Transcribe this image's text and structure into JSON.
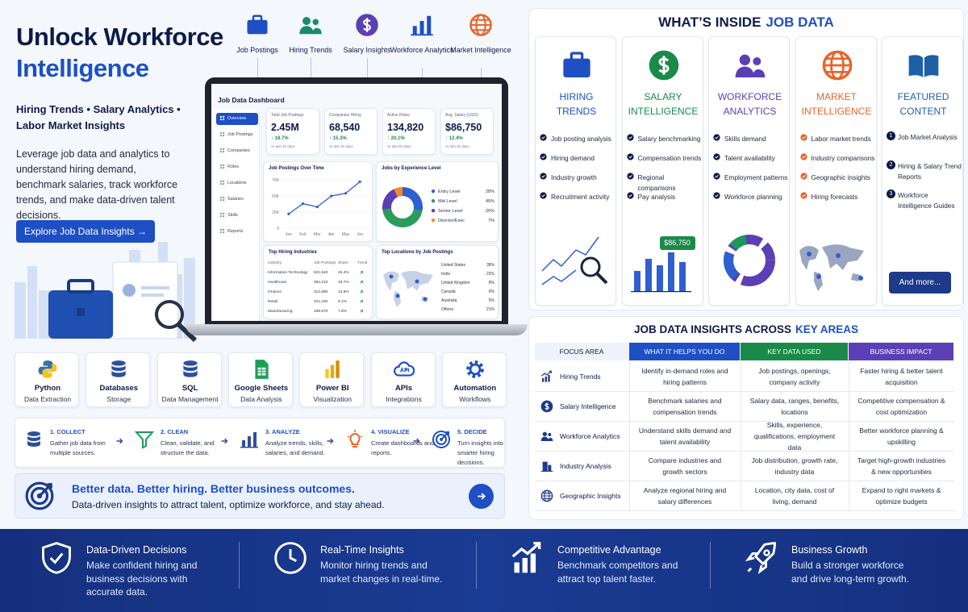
{
  "header": {
    "title_line1": "Unlock Workforce",
    "title_line2": "Intelligence",
    "tagline_line1": "Hiring Trends • Salary Analytics •",
    "tagline_line2": "Labor Market Insights",
    "description": "Leverage job data and analytics to understand hiring demand, benchmark salaries, track workforce trends, and make data-driven talent decisions.",
    "button": "Explore Job Data Insights →"
  },
  "top_icons": [
    "Job Postings",
    "Hiring Trends",
    "Salary Insights",
    "Workforce Analytics",
    "Market Intelligence"
  ],
  "dashboard": {
    "title": "Job Data Dashboard",
    "nav": [
      "Overview",
      "Job Postings",
      "Companies",
      "Roles",
      "Locations",
      "Salaries",
      "Skills",
      "Reports"
    ],
    "kpis": [
      {
        "label": "Total Job Postings",
        "value": "2.45M",
        "change": "↑ 18.7%",
        "period": "vs last 30 days"
      },
      {
        "label": "Companies Hiring",
        "value": "68,540",
        "change": "↑ 15.3%",
        "period": "vs last 30 days"
      },
      {
        "label": "Active Roles",
        "value": "134,820",
        "change": "↑ 20.1%",
        "period": "vs last 30 days"
      },
      {
        "label": "Avg. Salary (USD)",
        "value": "$86,750",
        "change": "↑ 12.4%",
        "period": "vs last 30 days"
      }
    ],
    "postings_chart": {
      "type": "line",
      "title": "Job Postings Over Time",
      "x": [
        "Jan",
        "Feb",
        "Mar",
        "Apr",
        "May",
        "Jun"
      ],
      "values": [
        22000,
        38000,
        33000,
        50000,
        54000,
        72000
      ],
      "color": "#2f5fd0",
      "ylim": [
        0,
        80000
      ],
      "yticks": [
        0,
        {
          "value": 25000,
          "label": "25K"
        },
        {
          "value": 50000,
          "label": "50K"
        },
        {
          "value": 75000,
          "label": "75K"
        }
      ]
    },
    "experience_chart": {
      "type": "pie",
      "title": "Jobs by Experience Level",
      "categories": [
        "Entry Level",
        "Mid Level",
        "Senior Level",
        "Director/Exec"
      ],
      "values": [
        28,
        45,
        20,
        7
      ],
      "value_labels": [
        "28%",
        "45%",
        "20%",
        "7%"
      ],
      "colors": [
        "#2f5fd0",
        "#2a9d5a",
        "#5b3fb5",
        "#f08a24"
      ]
    },
    "industries": {
      "title": "Top Hiring Industries",
      "columns": [
        "Industry",
        "Job Postings",
        "Share",
        "Trend"
      ],
      "rows": [
        [
          "Information Technology",
          "621,540",
          "25.4%"
        ],
        [
          "Healthcare",
          "384,210",
          "15.7%"
        ],
        [
          "Finance",
          "312,880",
          "12.8%"
        ],
        [
          "Retail",
          "221,430",
          "9.1%"
        ],
        [
          "Manufacturing",
          "189,670",
          "7.8%"
        ]
      ]
    },
    "locations": {
      "title": "Top Locations by Job Postings",
      "rows": [
        [
          "United States",
          "38%"
        ],
        [
          "India",
          "22%"
        ],
        [
          "United Kingdom",
          "8%"
        ],
        [
          "Canada",
          "6%"
        ],
        [
          "Australia",
          "5%"
        ],
        [
          "Others",
          "21%"
        ]
      ]
    }
  },
  "tools": [
    {
      "name": "Python",
      "role": "Data Extraction"
    },
    {
      "name": "Databases",
      "role": "Storage"
    },
    {
      "name": "SQL",
      "role": "Data Management"
    },
    {
      "name": "Google Sheets",
      "role": "Data Analysis"
    },
    {
      "name": "Power BI",
      "role": "Visualization"
    },
    {
      "name": "APIs",
      "role": "Integrations"
    },
    {
      "name": "Automation",
      "role": "Workflows"
    }
  ],
  "process": [
    {
      "step": "1. COLLECT",
      "text": "Gather job data from multiple sources."
    },
    {
      "step": "2. CLEAN",
      "text": "Clean, validate, and structure the data."
    },
    {
      "step": "3. ANALYZE",
      "text": "Analyze trends, skills, salaries, and demand."
    },
    {
      "step": "4. VISUALIZE",
      "text": "Create dashboards and reports."
    },
    {
      "step": "5. DECIDE",
      "text": "Turn insights into smarter hiring decisions."
    }
  ],
  "banner": {
    "headline": "Better data. Better hiring. Better business outcomes.",
    "text": "Data-driven insights to attract talent, optimize workforce, and stay ahead."
  },
  "inside": {
    "title": "WHAT’S INSIDE",
    "title_highlight": "JOB DATA",
    "columns": [
      {
        "title_line1": "HIRING",
        "title_line2": "TRENDS",
        "items": [
          "Job posting analysis",
          "Hiring demand",
          "Industry growth",
          "Recruitment activity"
        ]
      },
      {
        "title_line1": "SALARY",
        "title_line2": "INTELLIGENCE",
        "items": [
          "Salary benchmarking",
          "Compensation trends",
          "Regional comparisons",
          "Pay analysis"
        ],
        "badge": "$86,750"
      },
      {
        "title_line1": "WORKFORCE",
        "title_line2": "ANALYTICS",
        "items": [
          "Skills demand",
          "Talent availability",
          "Employment patterns",
          "Workforce planning"
        ]
      },
      {
        "title_line1": "MARKET",
        "title_line2": "INTELLIGENCE",
        "items": [
          "Labor market trends",
          "Industry comparisons",
          "Geographic insights",
          "Hiring forecasts"
        ]
      },
      {
        "title_line1": "FEATURED",
        "title_line2": "CONTENT",
        "items": [
          "Job Market Analysis",
          "Hiring & Salary Trend Reports",
          "Workforce Intelligence Guides"
        ],
        "markers": [
          "1",
          "2",
          "3"
        ],
        "button": "And more..."
      }
    ]
  },
  "insights_table": {
    "title": "JOB DATA INSIGHTS ACROSS",
    "title_highlight": "KEY AREAS",
    "columns": [
      "FOCUS AREA",
      "WHAT IT HELPS YOU DO",
      "KEY DATA USED",
      "BUSINESS IMPACT"
    ],
    "rows": [
      [
        "Hiring Trends",
        "Identify in-demand roles and hiring patterns",
        "Job postings, openings, company activity",
        "Faster hiring & better talent acquisition"
      ],
      [
        "Salary Intelligence",
        "Benchmark salaries and compensation trends",
        "Salary data, ranges, benefits, locations",
        "Competitive compensation & cost optimization"
      ],
      [
        "Workforce Analytics",
        "Understand skills demand and talent availability",
        "Skills, experience, qualifications, employment data",
        "Better workforce planning & upskilling"
      ],
      [
        "Industry Analysis",
        "Compare industries and growth sectors",
        "Job distribution, growth rate, industry data",
        "Target high-growth industries & new opportunities"
      ],
      [
        "Geographic Insights",
        "Analyze regional hiring and salary differences",
        "Location, city data, cost of living, demand",
        "Expand to right markets & optimize budgets"
      ]
    ]
  },
  "benefits": [
    {
      "title": "Data-Driven Decisions",
      "text": "Make confident hiring and business decisions with accurate data."
    },
    {
      "title": "Real-Time Insights",
      "text": "Monitor hiring trends and market changes in real-time."
    },
    {
      "title": "Competitive Advantage",
      "text": "Benchmark competitors and attract top talent faster."
    },
    {
      "title": "Business Growth",
      "text": "Build a stronger workforce and drive long-term growth."
    }
  ]
}
